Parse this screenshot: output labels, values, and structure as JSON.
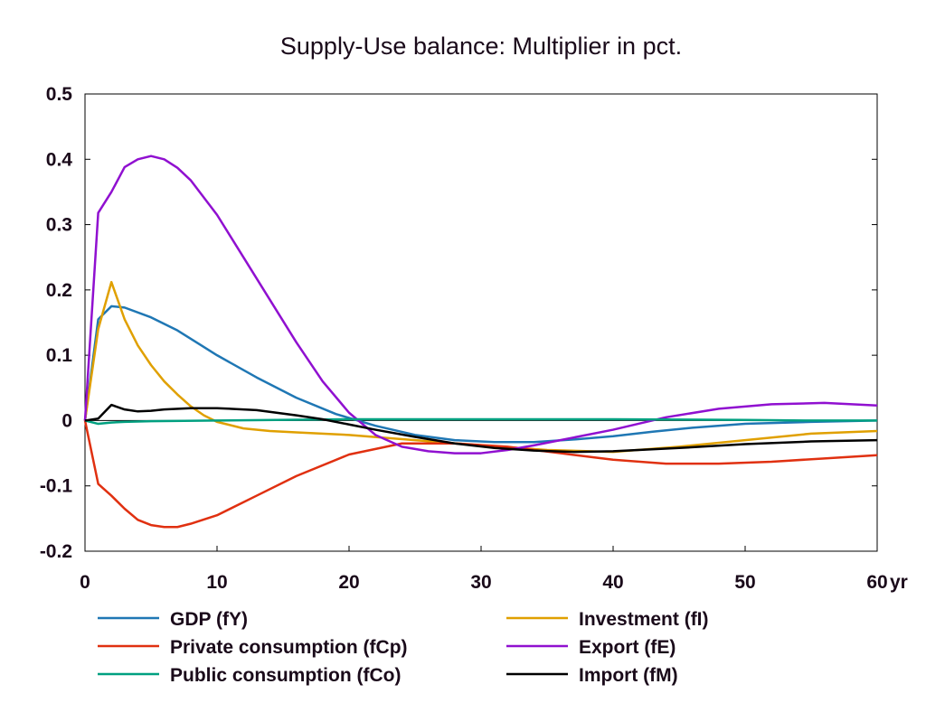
{
  "chart_data": {
    "type": "line",
    "title": "Supply-Use balance: Multiplier in pct.",
    "xlabel": "",
    "ylabel": "",
    "x_unit_label": "yr",
    "xlim": [
      0,
      60
    ],
    "ylim": [
      -0.2,
      0.5
    ],
    "x_ticks": [
      "0",
      "10",
      "20",
      "30",
      "40",
      "50",
      "60"
    ],
    "y_ticks": [
      "0.5",
      "0.4",
      "0.3",
      "0.2",
      "0.1",
      "0",
      "-0.1",
      "-0.2"
    ],
    "grid": false,
    "legend_position": "bottom",
    "series": [
      {
        "name": "GDP (fY)",
        "color": "#1f77b4",
        "x": [
          0,
          1,
          2,
          3,
          5,
          7,
          10,
          13,
          16,
          19,
          22,
          25,
          28,
          31,
          34,
          37,
          40,
          43,
          46,
          50,
          55,
          60
        ],
        "y": [
          0,
          0.155,
          0.175,
          0.173,
          0.158,
          0.138,
          0.1,
          0.066,
          0.035,
          0.01,
          -0.008,
          -0.022,
          -0.03,
          -0.033,
          -0.033,
          -0.029,
          -0.024,
          -0.017,
          -0.011,
          -0.005,
          -0.002,
          0
        ]
      },
      {
        "name": "Investment (fI)",
        "color": "#e0a000",
        "x": [
          0,
          1,
          2,
          3,
          4,
          5,
          6,
          7,
          8,
          9,
          10,
          12,
          14,
          16,
          20,
          25,
          30,
          35,
          40,
          45,
          50,
          55,
          60
        ],
        "y": [
          0,
          0.14,
          0.212,
          0.155,
          0.115,
          0.085,
          0.06,
          0.04,
          0.022,
          0.008,
          -0.002,
          -0.012,
          -0.016,
          -0.018,
          -0.022,
          -0.03,
          -0.038,
          -0.045,
          -0.048,
          -0.04,
          -0.03,
          -0.02,
          -0.016
        ]
      },
      {
        "name": "Private consumption (fCp)",
        "color": "#e03010",
        "x": [
          0,
          1,
          2,
          3,
          4,
          5,
          6,
          7,
          8,
          10,
          13,
          16,
          20,
          24,
          28,
          32,
          36,
          40,
          44,
          48,
          52,
          56,
          60
        ],
        "y": [
          0,
          -0.097,
          -0.115,
          -0.135,
          -0.152,
          -0.16,
          -0.163,
          -0.163,
          -0.158,
          -0.145,
          -0.115,
          -0.085,
          -0.052,
          -0.035,
          -0.035,
          -0.04,
          -0.05,
          -0.06,
          -0.066,
          -0.066,
          -0.063,
          -0.058,
          -0.053
        ]
      },
      {
        "name": "Export (fE)",
        "color": "#9010d0",
        "x": [
          0,
          1,
          2,
          3,
          4,
          5,
          6,
          7,
          8,
          10,
          12,
          14,
          16,
          18,
          20,
          22,
          24,
          26,
          28,
          30,
          32,
          34,
          36,
          40,
          44,
          48,
          52,
          56,
          60
        ],
        "y": [
          0,
          0.318,
          0.35,
          0.388,
          0.4,
          0.405,
          0.4,
          0.387,
          0.368,
          0.315,
          0.25,
          0.185,
          0.12,
          0.06,
          0.012,
          -0.022,
          -0.04,
          -0.047,
          -0.05,
          -0.05,
          -0.045,
          -0.038,
          -0.03,
          -0.014,
          0.005,
          0.018,
          0.025,
          0.027,
          0.023
        ]
      },
      {
        "name": "Public consumption (fCo)",
        "color": "#00a080",
        "x": [
          0,
          1,
          2,
          3,
          5,
          10,
          20,
          30,
          40,
          50,
          55,
          60
        ],
        "y": [
          0,
          -0.005,
          -0.003,
          -0.002,
          -0.001,
          0,
          0.002,
          0.002,
          0.002,
          0.001,
          0,
          0
        ]
      },
      {
        "name": "Import (fM)",
        "color": "#000000",
        "x": [
          0,
          1,
          2,
          3,
          4,
          5,
          6,
          8,
          10,
          13,
          16,
          18,
          20,
          22,
          25,
          28,
          31,
          34,
          37,
          40,
          45,
          50,
          55,
          60
        ],
        "y": [
          0,
          0.003,
          0.024,
          0.017,
          0.014,
          0.015,
          0.017,
          0.019,
          0.019,
          0.016,
          0.008,
          0.002,
          -0.006,
          -0.014,
          -0.025,
          -0.035,
          -0.042,
          -0.046,
          -0.048,
          -0.047,
          -0.042,
          -0.036,
          -0.032,
          -0.03
        ]
      }
    ]
  }
}
